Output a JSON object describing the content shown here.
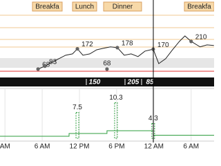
{
  "chart_data": [
    {
      "type": "line",
      "meals": [
        "Breakfa",
        "Lunch",
        "Dinner",
        "Breakfa"
      ],
      "carbs": [
        150,
        205,
        85
      ],
      "xlim": [
        -0.8,
        33.7
      ],
      "ylim": [
        32,
        387
      ],
      "series": [
        {
          "color": "#222222",
          "x": [
            5.33,
            6.44,
            7.56,
            8.67,
            9.78,
            10.89,
            11.67,
            12.56,
            13.67,
            14.78,
            15.89,
            17,
            18.11,
            19.22,
            20.33,
            21.44,
            22.56,
            23.89,
            24.78,
            25.89,
            27,
            28.11,
            29,
            30,
            31.44,
            32.56,
            33.67
          ],
          "values": [
            68,
            83,
            103,
            121,
            139,
            146,
            172,
            139,
            146,
            167,
            175,
            182,
            178,
            139,
            146,
            132,
            160,
            170,
            96,
            121,
            167,
            210,
            238,
            210,
            182,
            192,
            189
          ]
        },
        {
          "color": "#666666",
          "x": [
            5.33,
            6.44,
            11.67,
            18.11,
            23.89,
            30
          ],
          "values": [
            68,
            83,
            172,
            178,
            170,
            210
          ]
        },
        {
          "color": "#666666",
          "x": [
            16.44
          ],
          "values": [
            68
          ]
        }
      ]
    },
    {
      "type": "line",
      "xlim": [
        -0.8,
        33.7
      ],
      "ylim": [
        0,
        12
      ],
      "xticks": [
        {
          "value": 0,
          "label": "AM"
        },
        {
          "value": 6,
          "label": "6 AM"
        },
        {
          "value": 12,
          "label": "12 PM"
        },
        {
          "value": 18,
          "label": "6 PM"
        },
        {
          "value": 24,
          "label": "12 AM"
        },
        {
          "value": 30,
          "label": "6 AM"
        }
      ],
      "series": [
        {
          "color": "#2e9e3e",
          "x": [
            -0.8,
            10.33,
            10.33,
            16.44,
            16.44,
            23.89,
            23.89,
            33.7
          ],
          "values": [
            0.6,
            0.6,
            1.4,
            1.4,
            2.2,
            2.2,
            0.9,
            0.9
          ]
        },
        {
          "color": "#2e9e3e",
          "x": [
            11.67,
            17.89,
            23.89
          ],
          "values": [
            7.5,
            10.3,
            4.3
          ]
        }
      ]
    }
  ]
}
